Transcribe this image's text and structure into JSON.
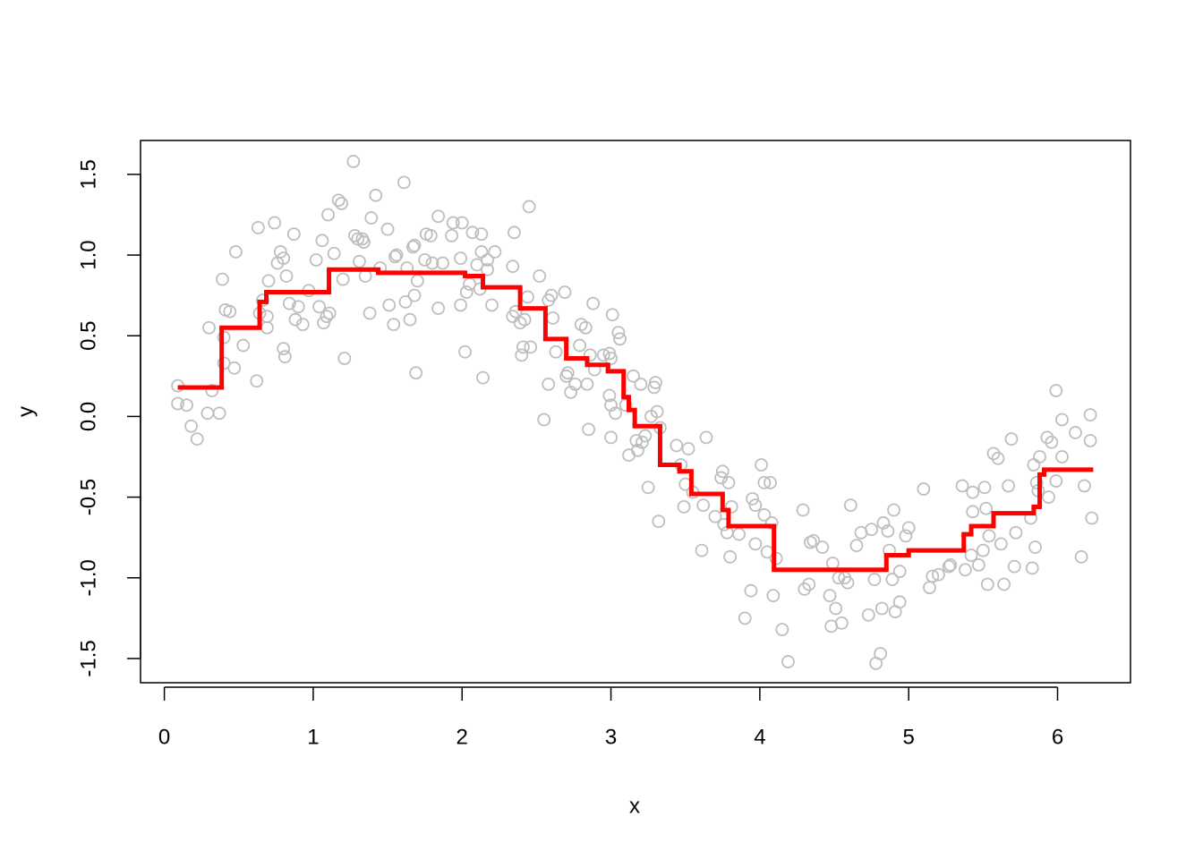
{
  "chart_data": {
    "type": "scatter",
    "x_label": "x",
    "y_label": "y",
    "xlim": [
      -0.16,
      6.49
    ],
    "ylim": [
      -1.65,
      1.71
    ],
    "xticks": [
      0,
      1,
      2,
      3,
      4,
      5,
      6
    ],
    "yticks": [
      -1.5,
      {
        "value": -1.0,
        "label": "-1.0"
      },
      -0.5,
      {
        "value": 0.0,
        "label": "0.0"
      },
      0.5,
      {
        "value": 1.0,
        "label": "1.0"
      },
      1.5
    ],
    "series": [
      {
        "type": "scatter",
        "color": "#bebebe",
        "x": [
          0.09,
          0.09,
          0.15,
          0.18,
          0.22,
          0.29,
          0.3,
          0.32,
          0.37,
          0.39,
          0.4,
          0.4,
          0.41,
          0.44,
          0.47,
          0.48,
          0.53,
          0.62,
          0.63,
          0.64,
          0.66,
          0.69,
          0.69,
          0.7,
          0.74,
          0.76,
          0.78,
          0.8,
          0.8,
          0.81,
          0.82,
          0.84,
          0.87,
          0.88,
          0.9,
          0.93,
          0.97,
          1.02,
          1.04,
          1.06,
          1.07,
          1.09,
          1.1,
          1.11,
          1.14,
          1.17,
          1.19,
          1.2,
          1.21,
          1.27,
          1.28,
          1.3,
          1.31,
          1.33,
          1.34,
          1.35,
          1.38,
          1.39,
          1.42,
          1.45,
          1.5,
          1.51,
          1.54,
          1.55,
          1.56,
          1.61,
          1.62,
          1.63,
          1.65,
          1.67,
          1.68,
          1.68,
          1.69,
          1.7,
          1.75,
          1.76,
          1.79,
          1.8,
          1.84,
          1.84,
          1.87,
          1.93,
          1.94,
          1.99,
          1.99,
          2.0,
          2.02,
          2.03,
          2.05,
          2.07,
          2.1,
          2.12,
          2.13,
          2.13,
          2.14,
          2.17,
          2.17,
          2.2,
          2.22,
          2.34,
          2.35,
          2.34,
          2.36,
          2.39,
          2.4,
          2.41,
          2.42,
          2.45,
          2.44,
          2.46,
          2.52,
          2.55,
          2.58,
          2.58,
          2.6,
          2.61,
          2.63,
          2.69,
          2.7,
          2.71,
          2.73,
          2.76,
          2.79,
          2.8,
          2.83,
          2.84,
          2.85,
          2.86,
          2.88,
          2.89,
          2.95,
          2.99,
          2.99,
          3.0,
          3.0,
          3.0,
          3.01,
          3.03,
          3.05,
          3.06,
          3.1,
          3.12,
          3.15,
          3.17,
          3.18,
          3.2,
          3.21,
          3.23,
          3.25,
          3.27,
          3.29,
          3.3,
          3.31,
          3.32,
          3.33,
          3.44,
          3.47,
          3.49,
          3.5,
          3.52,
          3.55,
          3.61,
          3.62,
          3.64,
          3.7,
          3.74,
          3.75,
          3.76,
          3.78,
          3.79,
          3.8,
          3.81,
          3.86,
          3.9,
          3.94,
          3.95,
          3.97,
          3.97,
          4.01,
          4.03,
          4.03,
          4.05,
          4.07,
          4.08,
          4.09,
          4.11,
          4.15,
          4.19,
          4.29,
          4.3,
          4.33,
          4.34,
          4.36,
          4.42,
          4.47,
          4.48,
          4.49,
          4.51,
          4.53,
          4.55,
          4.57,
          4.59,
          4.61,
          4.65,
          4.68,
          4.73,
          4.75,
          4.77,
          4.78,
          4.81,
          4.82,
          4.83,
          4.86,
          4.87,
          4.89,
          4.9,
          4.91,
          4.94,
          4.94,
          4.98,
          5.0,
          5.1,
          5.14,
          5.16,
          5.2,
          5.27,
          5.28,
          5.36,
          5.38,
          5.42,
          5.43,
          5.43,
          5.47,
          5.5,
          5.51,
          5.52,
          5.53,
          5.54,
          5.57,
          5.6,
          5.62,
          5.64,
          5.67,
          5.69,
          5.71,
          5.72,
          5.82,
          5.83,
          5.84,
          5.85,
          5.86,
          5.87,
          5.88,
          5.93,
          5.94,
          5.96,
          5.99,
          5.99,
          6.03,
          6.03,
          6.12,
          6.16,
          6.18,
          6.22,
          6.22,
          6.23
        ],
        "values": [
          0.19,
          0.08,
          0.07,
          -0.06,
          -0.14,
          0.02,
          0.55,
          0.16,
          0.02,
          0.85,
          0.49,
          0.33,
          0.66,
          0.65,
          0.3,
          1.02,
          0.44,
          0.22,
          1.17,
          0.64,
          0.72,
          0.62,
          0.55,
          0.84,
          1.2,
          0.95,
          1.02,
          0.42,
          0.98,
          0.37,
          0.87,
          0.7,
          1.13,
          0.6,
          0.68,
          0.57,
          0.78,
          0.97,
          0.68,
          1.09,
          0.58,
          0.62,
          1.25,
          0.64,
          1.01,
          1.34,
          1.32,
          0.85,
          0.36,
          1.58,
          1.12,
          1.1,
          0.96,
          1.1,
          1.08,
          0.87,
          0.64,
          1.23,
          1.37,
          0.92,
          1.16,
          0.69,
          0.57,
          0.99,
          1.0,
          1.45,
          0.71,
          0.92,
          0.6,
          1.05,
          1.06,
          0.75,
          0.27,
          0.84,
          0.97,
          1.13,
          1.12,
          0.95,
          1.24,
          0.67,
          0.95,
          1.12,
          1.2,
          0.98,
          0.69,
          1.2,
          0.4,
          0.77,
          0.82,
          1.14,
          0.94,
          0.79,
          1.13,
          1.02,
          0.24,
          0.97,
          0.91,
          0.69,
          1.02,
          0.93,
          1.14,
          0.62,
          0.65,
          0.58,
          0.38,
          0.43,
          0.6,
          1.3,
          0.74,
          0.43,
          0.87,
          -0.02,
          0.2,
          0.72,
          0.75,
          0.61,
          0.4,
          0.77,
          0.25,
          0.27,
          0.15,
          0.2,
          0.44,
          0.57,
          0.55,
          0.2,
          -0.08,
          0.38,
          0.7,
          0.29,
          0.38,
          0.39,
          0.13,
          0.36,
          -0.13,
          0.07,
          0.63,
          0.02,
          0.52,
          0.48,
          0.07,
          -0.24,
          0.25,
          -0.15,
          -0.21,
          0.2,
          -0.16,
          -0.12,
          -0.44,
          0.0,
          0.18,
          0.21,
          0.03,
          -0.65,
          -0.07,
          -0.18,
          -0.3,
          -0.56,
          -0.42,
          -0.2,
          -0.47,
          -0.83,
          -0.55,
          -0.13,
          -0.62,
          -0.38,
          -0.34,
          -0.67,
          -0.72,
          -0.41,
          -0.87,
          -0.56,
          -0.73,
          -1.25,
          -1.08,
          -0.51,
          -0.55,
          -0.79,
          -0.3,
          -0.61,
          -0.41,
          -0.84,
          -0.41,
          -0.66,
          -1.11,
          -0.88,
          -1.32,
          -1.52,
          -0.58,
          -1.07,
          -1.04,
          -0.78,
          -0.77,
          -0.81,
          -1.11,
          -1.3,
          -0.91,
          -1.19,
          -1.0,
          -1.28,
          -1.0,
          -1.03,
          -0.55,
          -0.8,
          -0.72,
          -1.23,
          -0.7,
          -1.01,
          -1.53,
          -1.47,
          -1.19,
          -0.66,
          -0.71,
          -0.83,
          -1.01,
          -0.58,
          -1.21,
          -1.15,
          -0.96,
          -0.74,
          -0.69,
          -0.45,
          -1.06,
          -0.99,
          -0.98,
          -0.93,
          -0.92,
          -0.43,
          -0.95,
          -0.86,
          -0.47,
          -0.59,
          -0.92,
          -0.83,
          -0.44,
          -0.57,
          -1.04,
          -0.74,
          -0.23,
          -0.26,
          -0.79,
          -1.04,
          -0.43,
          -0.14,
          -0.93,
          -0.72,
          -0.63,
          -0.94,
          -0.3,
          -0.81,
          -0.41,
          -0.46,
          -0.25,
          -0.13,
          -0.5,
          -0.16,
          0.16,
          -0.4,
          -0.25,
          -0.02,
          -0.1,
          -0.87,
          -0.43,
          0.01,
          -0.15,
          -0.63
        ]
      },
      {
        "type": "step",
        "color": "#ff0000",
        "bins": [
          0.09,
          0.385,
          0.64,
          0.685,
          1.106,
          1.437,
          2.02,
          2.14,
          2.39,
          2.56,
          2.7,
          2.84,
          2.98,
          3.085,
          3.12,
          3.16,
          3.33,
          3.46,
          3.54,
          3.75,
          3.79,
          4.095,
          4.85,
          5.0,
          5.37,
          5.42,
          5.57,
          5.84,
          5.88,
          5.91,
          6.24
        ],
        "values": [
          0.18,
          0.55,
          0.71,
          0.77,
          0.91,
          0.89,
          0.87,
          0.8,
          0.67,
          0.48,
          0.36,
          0.32,
          0.28,
          0.12,
          0.04,
          -0.06,
          -0.3,
          -0.34,
          -0.48,
          -0.58,
          -0.68,
          -0.95,
          -0.86,
          -0.83,
          -0.73,
          -0.68,
          -0.6,
          -0.56,
          -0.36,
          -0.33
        ]
      }
    ]
  }
}
